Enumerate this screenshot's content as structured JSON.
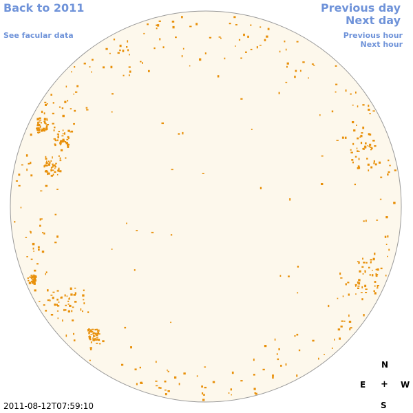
{
  "nav": {
    "back": "Back to 2011",
    "facular": "See facular data",
    "prev_day": "Previous day",
    "next_day": "Next day",
    "prev_hour": "Previous hour",
    "next_hour": "Next hour"
  },
  "compass": {
    "n": "N",
    "e": "E",
    "center": "+",
    "w": "W",
    "s": "S"
  },
  "timestamp": "2011-08-12T07:59:10",
  "colors": {
    "disk_fill": "#fdf8ec",
    "disk_stroke": "#999999",
    "facula": "#e8900a",
    "link": "#6f93d9"
  }
}
